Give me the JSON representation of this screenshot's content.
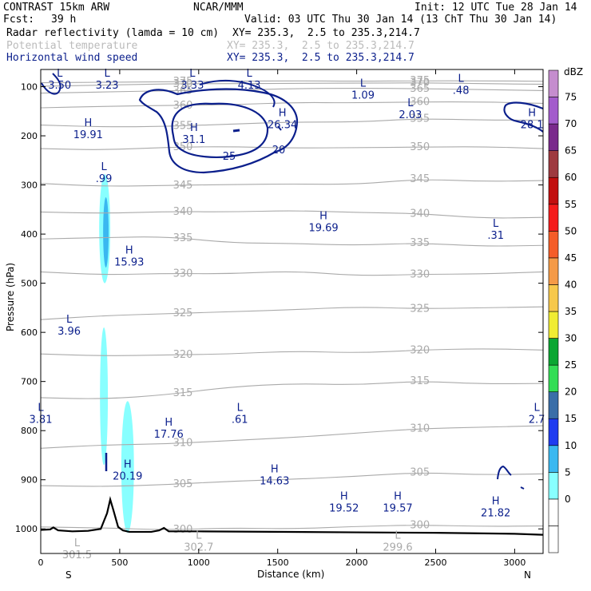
{
  "header": {
    "model": "CONTRAST 15km ARW",
    "org": "NCAR/MMM",
    "init": "Init: 12 UTC Tue 28 Jan 14",
    "fcst_label": "Fcst:",
    "fcst_value": "39 h",
    "valid": "Valid: 03 UTC Thu 30 Jan 14 (13 ChT Thu 30 Jan 14)",
    "fields": [
      {
        "name": "Radar reflectivity (lamda = 10 cm)",
        "xy": "XY= 235.3,  2.5 to 235.3,214.7",
        "color": "#000000"
      },
      {
        "name": "Potential temperature",
        "xy": "XY= 235.3,  2.5 to 235.3,214.7",
        "color": "#bbbbbb"
      },
      {
        "name": "Horizontal wind speed",
        "xy": "XY= 235.3,  2.5 to 235.3,214.7",
        "color": "#0b1f8c"
      }
    ]
  },
  "chart_data": {
    "type": "contour",
    "xlabel": "Distance (km)",
    "ylabel": "Pressure (hPa)",
    "xlim": [
      0,
      3180
    ],
    "ylim": [
      1050,
      65
    ],
    "xticks": [
      0,
      500,
      1000,
      1500,
      2000,
      2500,
      3000
    ],
    "yticks": [
      100,
      200,
      300,
      400,
      500,
      600,
      700,
      800,
      900,
      1000
    ],
    "endpoints": {
      "left": "S",
      "right": "N"
    },
    "theta_contours": [
      {
        "value": 300,
        "p": [
          996,
          998,
          1002,
          998,
          1000,
          995,
          992,
          995,
          994
        ]
      },
      {
        "value": 305,
        "p": [
          912,
          914,
          910,
          903,
          899,
          893,
          885,
          890,
          888
        ]
      },
      {
        "value": 310,
        "p": [
          836,
          829,
          827,
          820,
          814,
          805,
          796,
          793,
          790
        ]
      },
      {
        "value": 315,
        "p": [
          733,
          736,
          727,
          711,
          704,
          707,
          699,
          705,
          704
        ]
      },
      {
        "value": 320,
        "p": [
          644,
          648,
          646,
          644,
          638,
          642,
          636,
          633,
          636
        ]
      },
      {
        "value": 325,
        "p": [
          574,
          566,
          562,
          558,
          554,
          548,
          552,
          550,
          548
        ]
      },
      {
        "value": 330,
        "p": [
          477,
          483,
          480,
          481,
          475,
          485,
          482,
          481,
          477
        ]
      },
      {
        "value": 335,
        "p": [
          410,
          407,
          405,
          418,
          419,
          423,
          418,
          425,
          423
        ]
      },
      {
        "value": 340,
        "p": [
          355,
          358,
          354,
          355,
          352,
          356,
          358,
          368,
          366
        ]
      },
      {
        "value": 345,
        "p": [
          297,
          303,
          301,
          299,
          298,
          299,
          288,
          293,
          291
        ]
      },
      {
        "value": 350,
        "p": [
          226,
          229,
          223,
          222,
          225,
          224,
          223,
          222,
          226
        ]
      },
      {
        "value": 355,
        "p": [
          178,
          182,
          181,
          176,
          172,
          172,
          165,
          168,
          168
        ]
      },
      {
        "value": 360,
        "p": [
          143,
          140,
          138,
          137,
          132,
          133,
          131,
          131,
          134
        ]
      },
      {
        "value": 365,
        "p": [
          113,
          111,
          108,
          107,
          104,
          103,
          104,
          106,
          108
        ]
      },
      {
        "value": 370,
        "p": [
          99,
          97,
          94,
          94,
          93,
          93,
          92,
          94,
          95
        ]
      },
      {
        "value": 375,
        "p": [
          92,
          91,
          90,
          89,
          88,
          89,
          88,
          88,
          89
        ]
      }
    ],
    "wind_contours": [
      20,
      25
    ],
    "extrema": [
      {
        "kind": "L",
        "value": "3.50",
        "x": 120,
        "p": 80
      },
      {
        "kind": "L",
        "value": "3.23",
        "x": 420,
        "p": 80
      },
      {
        "kind": "L",
        "value": "3.33",
        "x": 960,
        "p": 80
      },
      {
        "kind": "L",
        "value": "4.13",
        "x": 1320,
        "p": 80
      },
      {
        "kind": "L",
        "value": "1.09",
        "x": 2040,
        "p": 100
      },
      {
        "kind": "L",
        "value": ".48",
        "x": 2660,
        "p": 90
      },
      {
        "kind": "L",
        "value": "2.03",
        "x": 2340,
        "p": 140
      },
      {
        "kind": "H",
        "value": "26.34",
        "x": 1530,
        "p": 160
      },
      {
        "kind": "H",
        "value": "19.91",
        "x": 300,
        "p": 180
      },
      {
        "kind": "H",
        "value": "31.1",
        "x": 970,
        "p": 190
      },
      {
        "kind": "H",
        "value": "28.1",
        "x": 3110,
        "p": 160
      },
      {
        "kind": "L",
        "value": ".99",
        "x": 400,
        "p": 270
      },
      {
        "kind": "H",
        "value": "19.69",
        "x": 1790,
        "p": 370
      },
      {
        "kind": "L",
        "value": ".31",
        "x": 2880,
        "p": 385
      },
      {
        "kind": "H",
        "value": "15.93",
        "x": 560,
        "p": 440
      },
      {
        "kind": "L",
        "value": "3.96",
        "x": 180,
        "p": 580
      },
      {
        "kind": "L",
        "value": "3.81",
        "x": 0,
        "p": 760
      },
      {
        "kind": "L",
        "value": ".61",
        "x": 1260,
        "p": 760
      },
      {
        "kind": "L",
        "value": "2.7",
        "x": 3140,
        "p": 760
      },
      {
        "kind": "H",
        "value": "17.76",
        "x": 810,
        "p": 790
      },
      {
        "kind": "H",
        "value": "20.19",
        "x": 550,
        "p": 875
      },
      {
        "kind": "H",
        "value": "14.63",
        "x": 1480,
        "p": 885
      },
      {
        "kind": "H",
        "value": "19.52",
        "x": 1920,
        "p": 940
      },
      {
        "kind": "H",
        "value": "19.57",
        "x": 2260,
        "p": 940
      },
      {
        "kind": "H",
        "value": "21.82",
        "x": 2880,
        "p": 950
      },
      {
        "kind": "L",
        "value": "302.7",
        "x": 1000,
        "p": 1020
      },
      {
        "kind": "L",
        "value": "299.6",
        "x": 2260,
        "p": 1020
      },
      {
        "kind": "L",
        "value": "301.5",
        "x": 230,
        "p": 1035
      }
    ],
    "terrain": {
      "x": [
        0,
        60,
        80,
        110,
        200,
        300,
        380,
        420,
        440,
        460,
        490,
        520,
        560,
        700,
        750,
        780,
        810,
        1000,
        2000,
        2500,
        3000,
        3180
      ],
      "p": [
        1002,
        1001,
        997,
        1003,
        1005,
        1004,
        1000,
        968,
        940,
        962,
        996,
        1003,
        1006,
        1006,
        1003,
        998,
        1005,
        1005,
        1007,
        1008,
        1010,
        1012
      ]
    },
    "reflectivity_areas": [
      {
        "dbz": 5,
        "color": "#88ffff",
        "x": [
          370,
          440
        ],
        "p": [
          278,
          500
        ]
      },
      {
        "dbz": 10,
        "color": "#3ab8f0",
        "x": [
          395,
          430
        ],
        "p": [
          325,
          468
        ]
      },
      {
        "dbz": 5,
        "color": "#88ffff",
        "x": [
          375,
          425
        ],
        "p": [
          590,
          870
        ]
      },
      {
        "dbz": 5,
        "color": "#88ffff",
        "x": [
          510,
          590
        ],
        "p": [
          740,
          1008
        ]
      }
    ],
    "colorbar": {
      "unit": "dBZ",
      "levels": [
        0,
        5,
        10,
        15,
        20,
        25,
        30,
        35,
        40,
        45,
        50,
        55,
        60,
        65,
        70,
        75
      ],
      "colors": [
        "#ffffff",
        "#ffffff",
        "#88ffff",
        "#3ab8f0",
        "#1f3cf0",
        "#3a6ea8",
        "#33dd55",
        "#0aa632",
        "#f0ec32",
        "#f7c84b",
        "#f59a47",
        "#f55d28",
        "#f51c1c",
        "#c20f0f",
        "#9e3a40",
        "#7a2a8c",
        "#a35ccc",
        "#c58dce"
      ]
    }
  }
}
